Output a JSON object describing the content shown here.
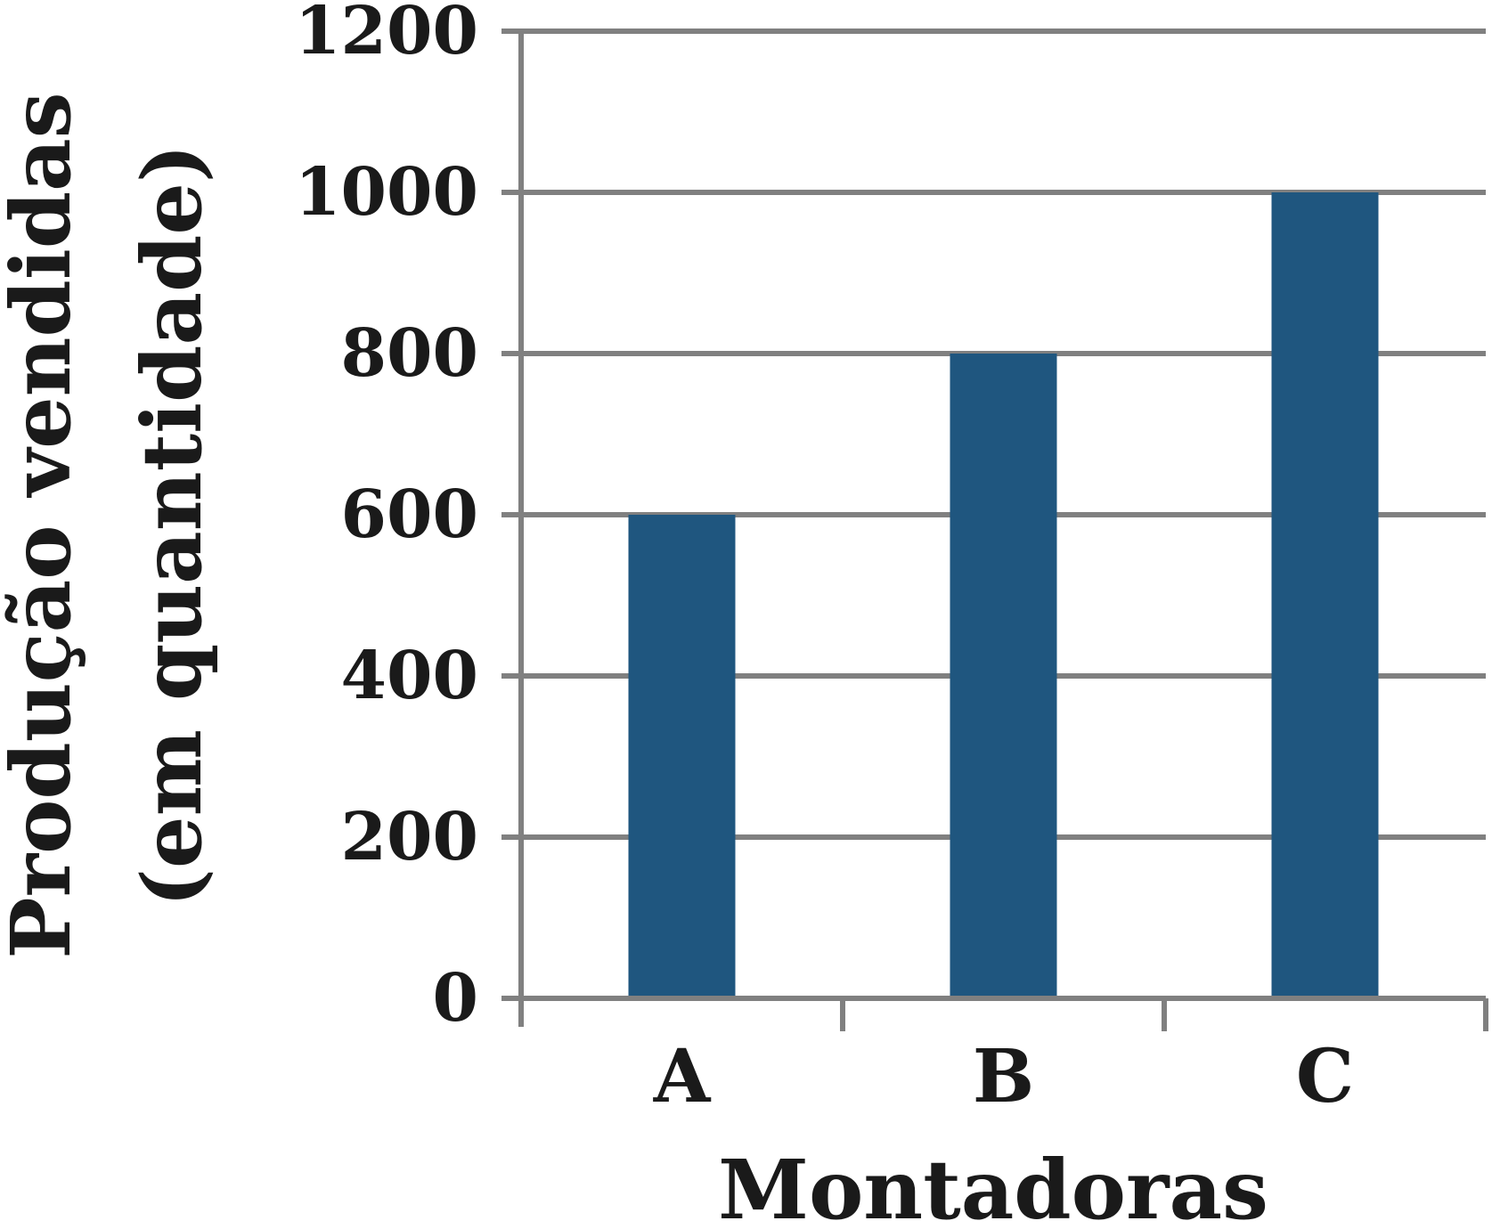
{
  "chart_data": {
    "type": "bar",
    "categories": [
      "A",
      "B",
      "C"
    ],
    "values": [
      600,
      800,
      1000
    ],
    "xlabel": "Montadoras",
    "ylabel_lines": [
      "Produção vendidas",
      "(em quantidade)"
    ],
    "ylim": [
      0,
      1200
    ],
    "yticks": [
      0,
      200,
      400,
      600,
      800,
      1000,
      1200
    ],
    "grid": true,
    "legend": "none",
    "colors": {
      "bar": "#1f567f",
      "grid": "#808080",
      "text": "#1a1a1a"
    }
  }
}
